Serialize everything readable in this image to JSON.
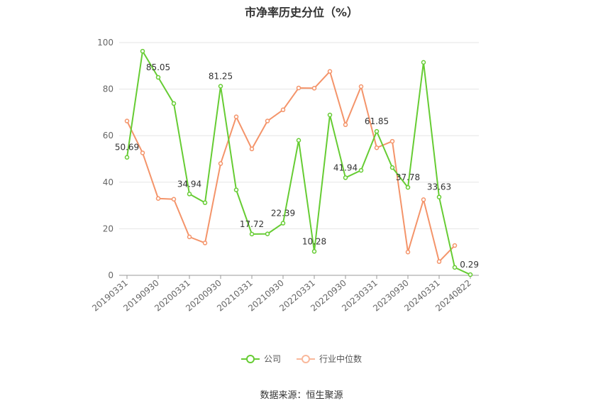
{
  "chart_data": {
    "type": "line",
    "title": "市净率历史分位（%）",
    "x": [
      "20190331",
      "20190630",
      "20190930",
      "20191231",
      "20200331",
      "20200630",
      "20200930",
      "20201231",
      "20210331",
      "20210630",
      "20210930",
      "20211231",
      "20220331",
      "20220630",
      "20220930",
      "20221231",
      "20230331",
      "20230630",
      "20230930",
      "20231231",
      "20240331",
      "20240630",
      "20240822"
    ],
    "x_tick_labels": [
      "20190331",
      "20190930",
      "20200331",
      "20200930",
      "20210331",
      "20210930",
      "20220331",
      "20220930",
      "20230331",
      "20230930",
      "20240331",
      "20240822"
    ],
    "series": [
      {
        "name": "公司",
        "color": "#66cc33",
        "values": [
          50.69,
          96.3,
          85.05,
          73.8,
          34.94,
          31.2,
          81.25,
          36.7,
          17.72,
          17.8,
          22.39,
          58.0,
          10.28,
          68.9,
          41.94,
          45.1,
          61.85,
          46.3,
          37.78,
          91.5,
          33.63,
          3.4,
          0.29
        ],
        "labels": {
          "0": "50.69",
          "2": "85.05",
          "4": "34.94",
          "6": "81.25",
          "8": "17.72",
          "10": "22.39",
          "12": "10.28",
          "14": "41.94",
          "16": "61.85",
          "18": "37.78",
          "20": "33.63",
          "22": "0.29"
        }
      },
      {
        "name": "行业中位数",
        "color": "#f4946a",
        "values": [
          66.3,
          52.6,
          33.0,
          32.7,
          16.5,
          13.9,
          48.0,
          68.1,
          54.3,
          66.3,
          71.1,
          80.5,
          80.4,
          87.6,
          64.7,
          81.1,
          54.8,
          57.6,
          10.0,
          32.5,
          5.9,
          12.8,
          null
        ]
      }
    ],
    "ylim": [
      0,
      100
    ],
    "yticks": [
      0,
      20,
      40,
      60,
      80,
      100
    ],
    "grid": true,
    "legend": "bottom"
  },
  "source": "数据来源：恒生聚源"
}
